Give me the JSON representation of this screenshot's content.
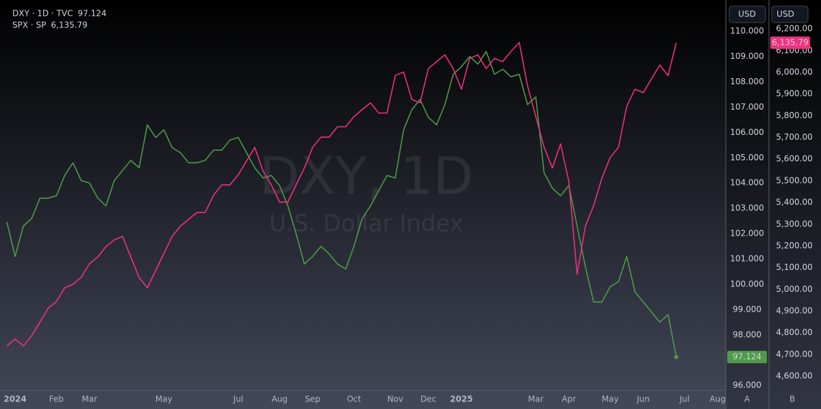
{
  "chart_data": {
    "type": "line",
    "watermark": "DXY, 1D",
    "watermark_subtitle": "U.S. Dollar Index",
    "y_unit": "USD",
    "y2_unit": "USD",
    "y_axis_label": "A",
    "y2_axis_label": "B",
    "grid": false,
    "legend": "top-left",
    "categories": [
      null,
      "2024",
      null,
      null,
      null,
      null,
      "Feb",
      null,
      null,
      null,
      "Mar",
      null,
      null,
      null,
      null,
      null,
      null,
      null,
      null,
      "May",
      null,
      null,
      null,
      null,
      null,
      null,
      null,
      null,
      "Jul",
      null,
      null,
      null,
      null,
      "Aug",
      null,
      null,
      null,
      "Sep",
      null,
      null,
      null,
      null,
      "Oct",
      null,
      null,
      null,
      null,
      "Nov",
      null,
      null,
      null,
      "Dec",
      null,
      null,
      null,
      "2025",
      null,
      null,
      null,
      null,
      null,
      null,
      null,
      null,
      "Mar",
      null,
      null,
      null,
      "Apr",
      null,
      null,
      null,
      null,
      "May",
      null,
      null,
      null,
      "Jun",
      null,
      null,
      null,
      null,
      "Jul",
      null,
      null,
      null,
      "Aug"
    ],
    "series": [
      {
        "name": "DXY · 1D · TVC",
        "color": "#4f9a4a",
        "axis": "y",
        "values": [
          102.46,
          101.1,
          102.3,
          102.6,
          103.4,
          103.4,
          103.5,
          104.3,
          104.8,
          104.1,
          104.0,
          103.4,
          103.1,
          104.1,
          104.5,
          104.9,
          104.6,
          106.3,
          105.8,
          106.1,
          105.4,
          105.2,
          104.8,
          104.8,
          104.9,
          105.3,
          105.3,
          105.7,
          105.8,
          105.2,
          104.6,
          104.2,
          104.3,
          103.9,
          103.1,
          102.0,
          100.8,
          101.1,
          101.5,
          101.2,
          100.8,
          100.6,
          101.5,
          102.6,
          103.1,
          103.7,
          104.3,
          104.2,
          106.1,
          106.9,
          107.3,
          106.6,
          106.3,
          107.1,
          108.3,
          108.6,
          109.0,
          108.7,
          109.2,
          108.3,
          108.5,
          108.2,
          108.3,
          107.1,
          107.4,
          104.4,
          103.8,
          103.5,
          103.9,
          102.3,
          100.7,
          99.3,
          99.3,
          99.9,
          100.1,
          101.1,
          99.7,
          99.3,
          98.9,
          98.5,
          98.8,
          97.124,
          null,
          null,
          null,
          null,
          null
        ]
      },
      {
        "name": "SPX · SP",
        "color": "#f2307f",
        "axis": "y2",
        "values": [
          4739,
          4771,
          4739,
          4786,
          4849,
          4913,
          4944,
          5007,
          5023,
          5055,
          5118,
          5149,
          5197,
          5228,
          5244,
          5149,
          5055,
          5007,
          5086,
          5165,
          5244,
          5291,
          5323,
          5354,
          5354,
          5433,
          5481,
          5481,
          5528,
          5591,
          5654,
          5544,
          5481,
          5402,
          5402,
          5481,
          5559,
          5654,
          5701,
          5701,
          5749,
          5749,
          5796,
          5828,
          5859,
          5812,
          5812,
          5985,
          6001,
          5875,
          5859,
          6017,
          6049,
          6080,
          6017,
          5922,
          6064,
          6080,
          6017,
          6064,
          6049,
          6096,
          6137,
          5938,
          5796,
          5654,
          5559,
          5670,
          5496,
          5070,
          5291,
          5386,
          5512,
          5607,
          5654,
          5843,
          5922,
          5906,
          5970,
          6033,
          5985,
          6135.79,
          null,
          null,
          null,
          null,
          null
        ],
        "value_labels": [
          null,
          null,
          null,
          null,
          null,
          null,
          null,
          null,
          null,
          null,
          null,
          null,
          null,
          null,
          null,
          null,
          null,
          null,
          null,
          null,
          null,
          null,
          null,
          null,
          null,
          null,
          null,
          null,
          null,
          null,
          null,
          null,
          null,
          null,
          null,
          null,
          null,
          null,
          null,
          null,
          null,
          null,
          null,
          null,
          null,
          null,
          null,
          null,
          null,
          null,
          null,
          null,
          null,
          null,
          null,
          null,
          null,
          null,
          null,
          null,
          null,
          null,
          null,
          null,
          null,
          null,
          null,
          null,
          null,
          null,
          null,
          null,
          null,
          null,
          null,
          null,
          null,
          null,
          null,
          null,
          null,
          "6,135.79",
          null,
          null,
          null,
          null,
          null
        ]
      }
    ],
    "ylim": [
      95.8,
      111.1
    ],
    "yticks": [
      {
        "value": 96,
        "label": "96.000"
      },
      {
        "value": 97,
        "label": "97.000"
      },
      {
        "value": 98,
        "label": "98.000"
      },
      {
        "value": 99,
        "label": "99.000"
      },
      {
        "value": 100,
        "label": "100.000"
      },
      {
        "value": 101,
        "label": "101.000"
      },
      {
        "value": 102,
        "label": "102.000"
      },
      {
        "value": 103,
        "label": "103.000"
      },
      {
        "value": 104,
        "label": "104.000"
      },
      {
        "value": 105,
        "label": "105.000"
      },
      {
        "value": 106,
        "label": "106.000"
      },
      {
        "value": 107,
        "label": "107.000"
      },
      {
        "value": 108,
        "label": "108.000"
      },
      {
        "value": 109,
        "label": "109.000"
      },
      {
        "value": 110,
        "label": "110.000"
      }
    ],
    "y2lim": [
      4534,
      6317
    ],
    "y2ticks": [
      {
        "value": 4600,
        "label": "4,600.00"
      },
      {
        "value": 4700,
        "label": "4,700.00"
      },
      {
        "value": 4800,
        "label": "4,800.00"
      },
      {
        "value": 4900,
        "label": "4,900.00"
      },
      {
        "value": 5000,
        "label": "5,000.00"
      },
      {
        "value": 5100,
        "label": "5,100.00"
      },
      {
        "value": 5200,
        "label": "5,200.00"
      },
      {
        "value": 5300,
        "label": "5,300.00"
      },
      {
        "value": 5400,
        "label": "5,400.00"
      },
      {
        "value": 5500,
        "label": "5,500.00"
      },
      {
        "value": 5600,
        "label": "5,600.00"
      },
      {
        "value": 5700,
        "label": "5,700.00"
      },
      {
        "value": 5800,
        "label": "5,800.00"
      },
      {
        "value": 5900,
        "label": "5,900.00"
      },
      {
        "value": 6000,
        "label": "6,000.00"
      },
      {
        "value": 6100,
        "label": "6,100.00"
      },
      {
        "value": 6200,
        "label": "6,200.00"
      }
    ]
  }
}
